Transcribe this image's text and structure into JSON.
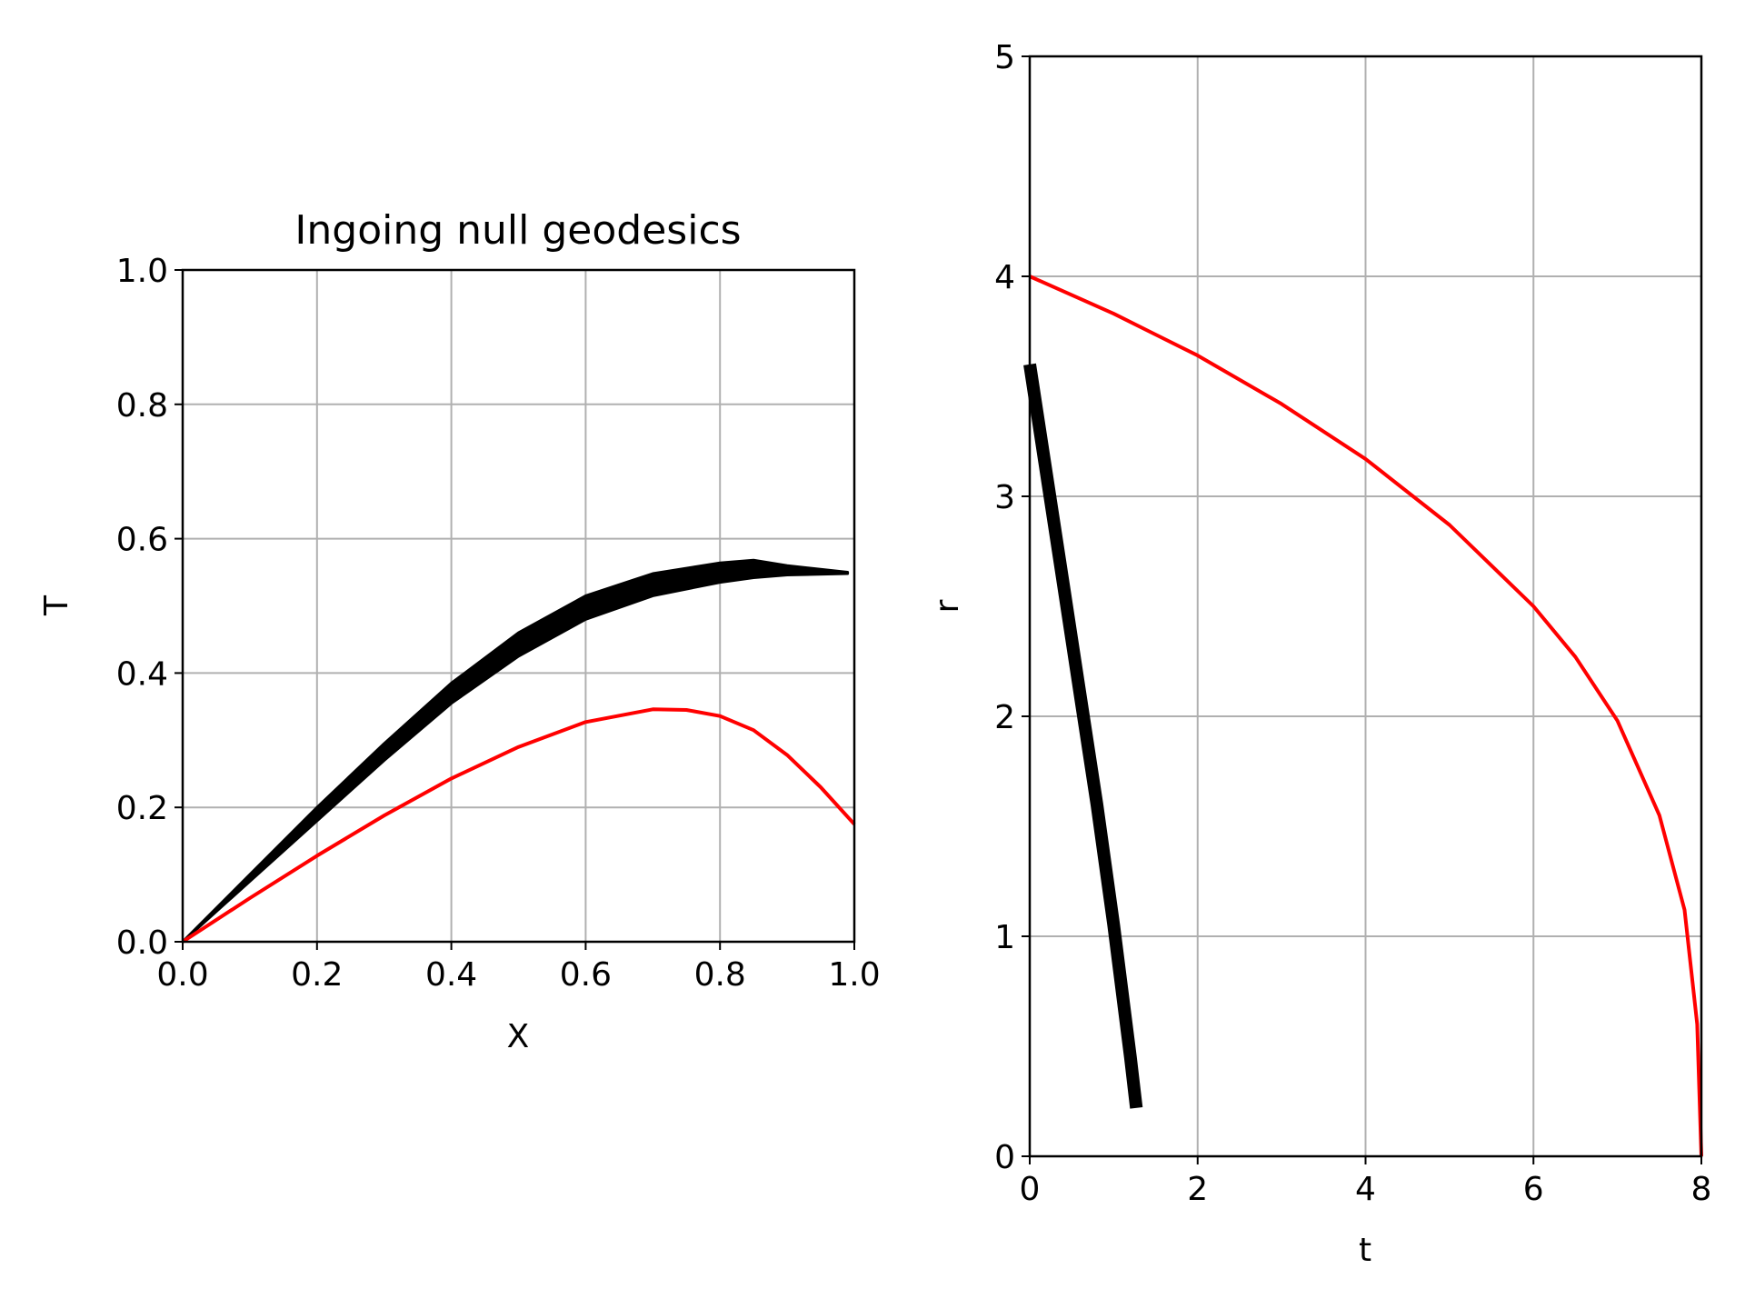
{
  "chart_data": [
    {
      "type": "line",
      "title": "Ingoing null geodesics",
      "xlabel": "X",
      "ylabel": "T",
      "xlim": [
        0,
        1
      ],
      "ylim": [
        0,
        1
      ],
      "xticks": [
        "0.0",
        "0.2",
        "0.4",
        "0.6",
        "0.8",
        "1.0"
      ],
      "yticks": [
        "0.0",
        "0.2",
        "0.4",
        "0.6",
        "0.8",
        "1.0"
      ],
      "grid": true,
      "series": [
        {
          "color": "#000000",
          "style": "thick band",
          "x": [
            0.0,
            0.1,
            0.2,
            0.3,
            0.4,
            0.5,
            0.6,
            0.7,
            0.8,
            0.85,
            0.9,
            0.99
          ],
          "y_upper": [
            0.0,
            0.1,
            0.2,
            0.295,
            0.385,
            0.46,
            0.515,
            0.548,
            0.564,
            0.568,
            0.56,
            0.55
          ],
          "y_lower": [
            0.0,
            0.09,
            0.18,
            0.27,
            0.355,
            0.425,
            0.48,
            0.515,
            0.535,
            0.542,
            0.546,
            0.548
          ]
        },
        {
          "color": "#ff0000",
          "style": "line",
          "x": [
            0.0,
            0.1,
            0.2,
            0.3,
            0.4,
            0.5,
            0.6,
            0.7,
            0.75,
            0.8,
            0.85,
            0.9,
            0.95,
            1.0
          ],
          "y": [
            0.0,
            0.065,
            0.128,
            0.188,
            0.243,
            0.29,
            0.327,
            0.346,
            0.345,
            0.336,
            0.315,
            0.278,
            0.23,
            0.175
          ]
        }
      ]
    },
    {
      "type": "line",
      "title": "",
      "xlabel": "t",
      "ylabel": "r",
      "xlim": [
        0,
        8
      ],
      "ylim": [
        0,
        5
      ],
      "xticks": [
        "0",
        "2",
        "4",
        "6",
        "8"
      ],
      "yticks": [
        "0",
        "1",
        "2",
        "3",
        "4",
        "5"
      ],
      "grid": true,
      "series": [
        {
          "color": "#000000",
          "style": "thick band",
          "x": [
            0.0,
            0.2,
            0.4,
            0.6,
            0.8,
            1.0,
            1.2,
            1.27
          ],
          "y": [
            3.6,
            3.1,
            2.6,
            2.1,
            1.6,
            1.05,
            0.45,
            0.22
          ]
        },
        {
          "color": "#ff0000",
          "style": "line",
          "x": [
            0.0,
            1.0,
            2.0,
            3.0,
            4.0,
            5.0,
            6.0,
            6.5,
            7.0,
            7.5,
            7.8,
            7.95,
            8.0
          ],
          "y": [
            4.0,
            3.83,
            3.64,
            3.42,
            3.17,
            2.87,
            2.5,
            2.27,
            1.98,
            1.55,
            1.12,
            0.6,
            0.0
          ]
        }
      ]
    }
  ]
}
